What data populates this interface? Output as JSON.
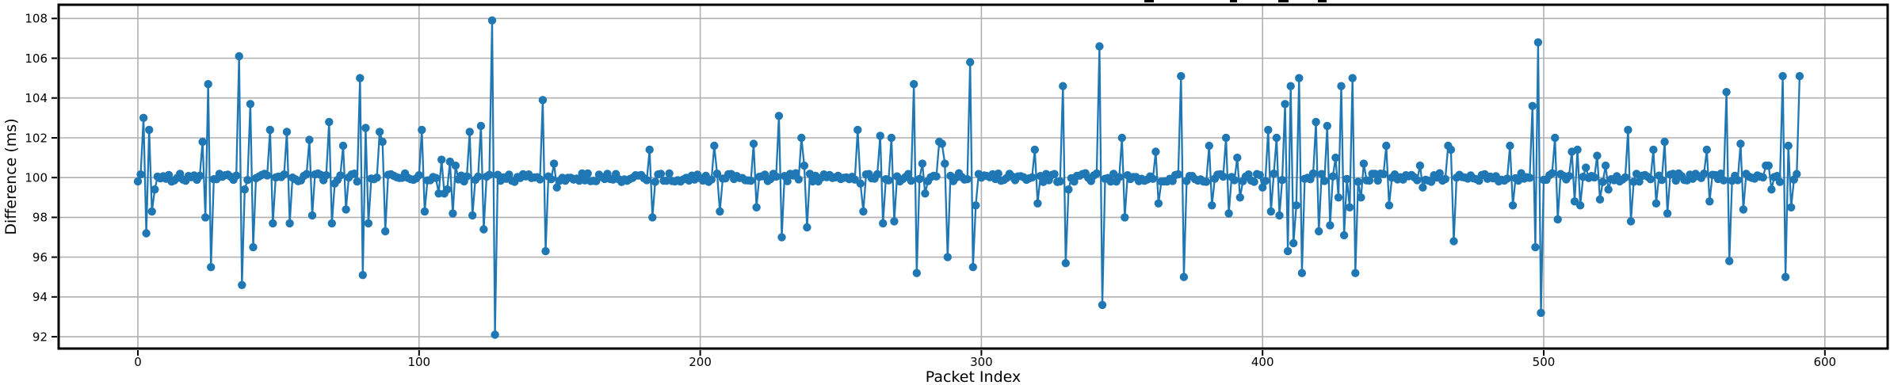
{
  "figure": {
    "background": "#ffffff",
    "note": "title is cropped out of frame; only tiny descender fragments visible at top edge"
  },
  "chart_data": {
    "type": "line",
    "title": "",
    "xlabel": "Packet Index",
    "ylabel": "Difference (ms)",
    "x_ticks": [
      0,
      100,
      200,
      300,
      400,
      500,
      600
    ],
    "y_ticks": [
      92,
      94,
      96,
      98,
      100,
      102,
      104,
      106,
      108
    ],
    "xlim": [
      -29.6,
      620.6
    ],
    "ylim": [
      91.35,
      108.72
    ],
    "grid": true,
    "grid_color": "#b0b0b0",
    "line_color": "#1f77b4",
    "marker": "o",
    "n_points": 592,
    "x_start": 0,
    "x_step": 1,
    "baseline": {
      "mean": 100.0,
      "noise_amplitude": 0.22
    },
    "data_min": 92.1,
    "data_max": 107.9,
    "spikes": {
      "2": 103.0,
      "3": 97.2,
      "4": 102.4,
      "5": 98.3,
      "6": 99.4,
      "23": 101.8,
      "24": 98.0,
      "25": 104.7,
      "26": 95.5,
      "36": 106.1,
      "37": 94.6,
      "38": 99.4,
      "40": 103.7,
      "41": 96.5,
      "47": 102.4,
      "48": 97.7,
      "53": 102.3,
      "54": 97.7,
      "61": 101.9,
      "62": 98.1,
      "68": 102.8,
      "69": 97.7,
      "70": 99.7,
      "73": 101.6,
      "74": 98.4,
      "79": 105.0,
      "80": 95.1,
      "81": 102.5,
      "82": 97.7,
      "86": 102.3,
      "87": 101.8,
      "88": 97.3,
      "101": 102.4,
      "102": 98.3,
      "107": 99.2,
      "108": 100.9,
      "109": 99.2,
      "110": 99.4,
      "111": 100.8,
      "112": 98.2,
      "113": 100.6,
      "118": 102.3,
      "119": 98.1,
      "122": 102.6,
      "123": 97.4,
      "126": 107.9,
      "127": 92.1,
      "144": 103.9,
      "145": 96.3,
      "148": 100.7,
      "149": 99.5,
      "182": 101.4,
      "183": 98.0,
      "205": 101.6,
      "206": 100.2,
      "207": 98.3,
      "219": 101.7,
      "220": 98.5,
      "228": 103.1,
      "229": 97.0,
      "236": 102.0,
      "237": 100.6,
      "238": 97.5,
      "256": 102.4,
      "257": 99.7,
      "258": 98.3,
      "264": 102.1,
      "265": 97.7,
      "268": 102.0,
      "269": 97.8,
      "276": 104.7,
      "277": 95.2,
      "279": 100.7,
      "280": 99.2,
      "285": 101.8,
      "286": 101.7,
      "287": 100.7,
      "288": 96.0,
      "296": 105.8,
      "297": 95.5,
      "298": 98.6,
      "319": 101.4,
      "320": 98.7,
      "329": 104.6,
      "330": 95.7,
      "331": 99.4,
      "342": 106.6,
      "343": 93.6,
      "350": 102.0,
      "351": 98.0,
      "362": 101.3,
      "363": 98.7,
      "371": 105.1,
      "372": 95.0,
      "381": 101.6,
      "382": 98.6,
      "387": 102.0,
      "388": 98.2,
      "391": 101.0,
      "392": 99.0,
      "400": 99.5,
      "402": 102.4,
      "403": 98.3,
      "405": 102.0,
      "406": 98.1,
      "408": 103.7,
      "409": 96.3,
      "410": 104.6,
      "411": 96.7,
      "412": 98.6,
      "413": 105.0,
      "414": 95.2,
      "419": 102.8,
      "420": 97.3,
      "423": 102.6,
      "424": 97.6,
      "426": 101.0,
      "427": 99.0,
      "428": 104.6,
      "429": 97.1,
      "431": 98.5,
      "432": 105.0,
      "433": 95.2,
      "435": 99.0,
      "436": 100.7,
      "444": 101.6,
      "445": 98.6,
      "456": 100.6,
      "457": 99.5,
      "466": 101.6,
      "467": 101.4,
      "468": 96.8,
      "488": 101.6,
      "489": 98.6,
      "496": 103.6,
      "497": 96.5,
      "498": 106.8,
      "499": 93.2,
      "504": 102.0,
      "505": 97.9,
      "510": 101.3,
      "511": 98.8,
      "512": 101.4,
      "513": 98.6,
      "515": 100.5,
      "519": 101.1,
      "520": 98.9,
      "522": 100.6,
      "523": 99.4,
      "530": 102.4,
      "531": 97.8,
      "539": 101.4,
      "540": 98.7,
      "543": 101.8,
      "544": 98.2,
      "558": 101.4,
      "559": 98.8,
      "565": 104.3,
      "566": 95.8,
      "570": 101.7,
      "571": 98.4,
      "579": 100.6,
      "580": 100.6,
      "581": 99.4,
      "585": 105.1,
      "586": 95.0,
      "587": 101.6,
      "588": 98.5,
      "591": 105.1
    },
    "cropped_title_marks": [
      [
        1444,
        12
      ],
      [
        1552,
        9
      ],
      [
        1613,
        13
      ],
      [
        1663,
        11
      ]
    ],
    "legend": null
  }
}
